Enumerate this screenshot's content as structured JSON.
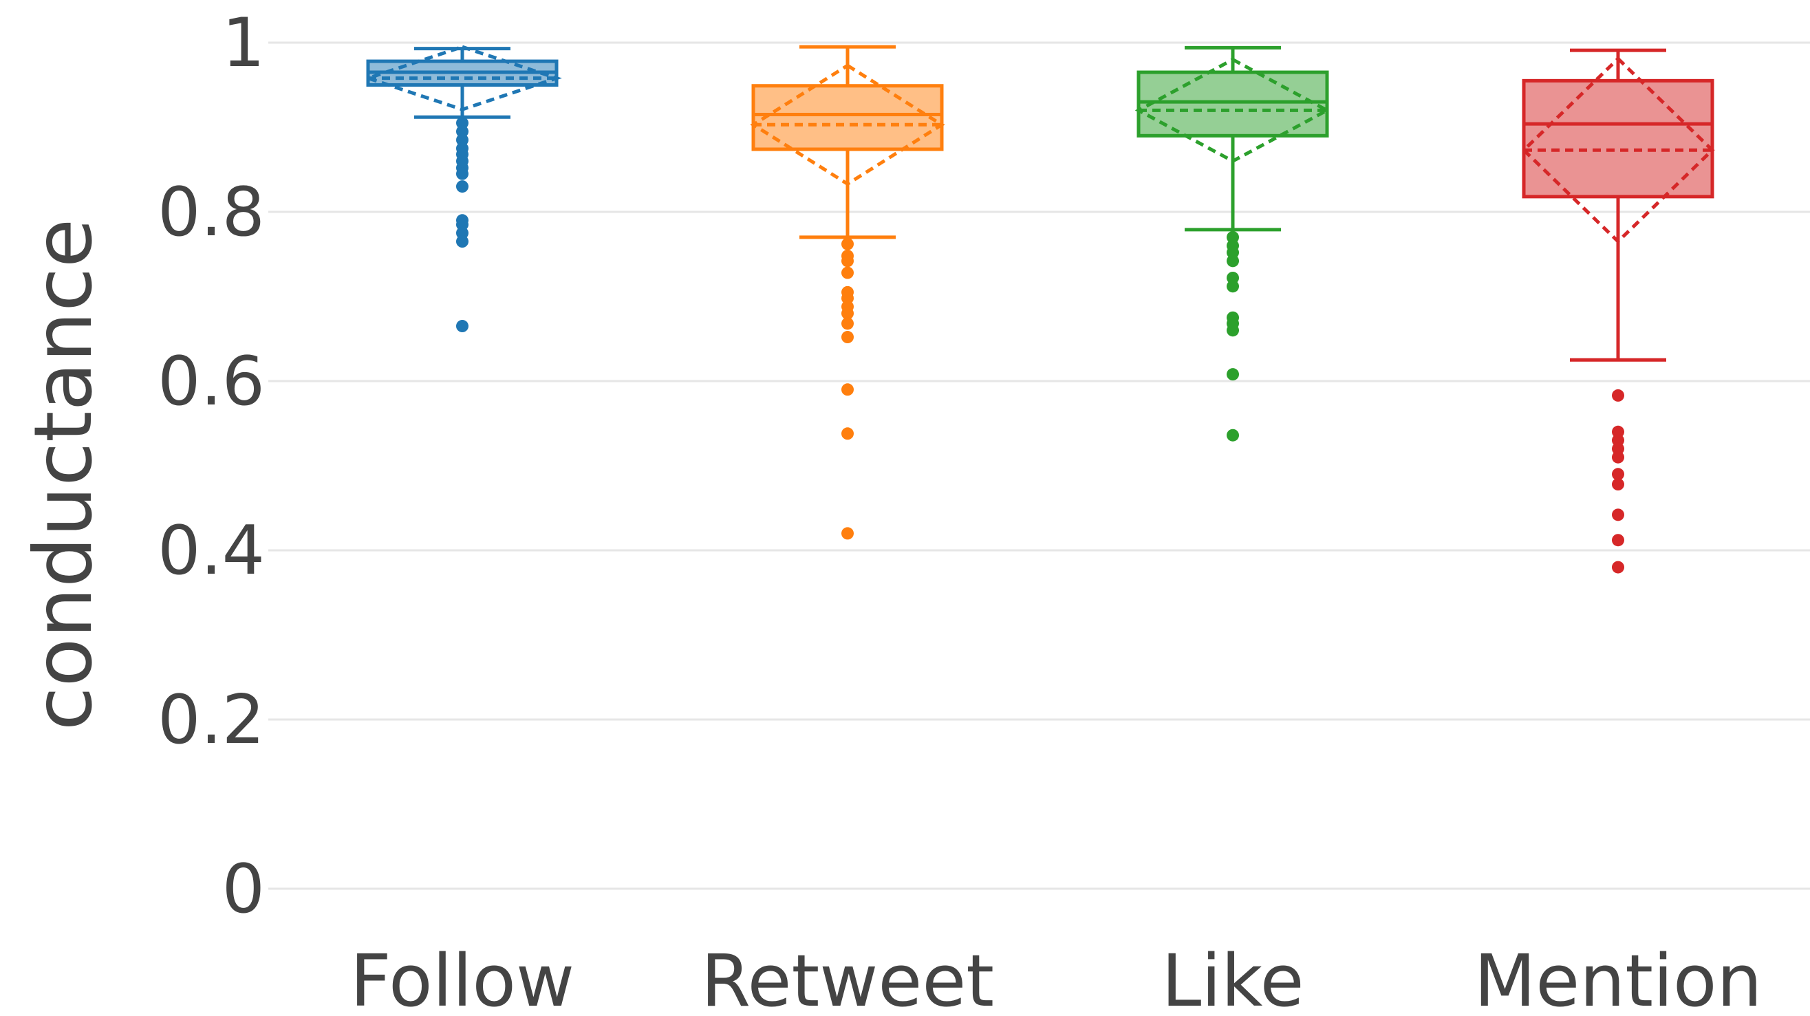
{
  "chart_data": {
    "type": "box",
    "ylabel": "conductance",
    "xlabel": "",
    "ylim": [
      0,
      1
    ],
    "yticks": [
      "0",
      "0.2",
      "0.4",
      "0.6",
      "0.8",
      "1"
    ],
    "grid": true,
    "categories": [
      "Follow",
      "Retweet",
      "Like",
      "Mention"
    ],
    "series": [
      {
        "color": "#1f77b4",
        "q1": 0.95,
        "median": 0.965,
        "q3": 0.978,
        "whisker_low": 0.912,
        "whisker_high": 0.993,
        "mean": 0.958,
        "sd": 0.037,
        "outliers": [
          0.905,
          0.895,
          0.885,
          0.875,
          0.868,
          0.86,
          0.852,
          0.845,
          0.83,
          0.79,
          0.785,
          0.775,
          0.765,
          0.665
        ]
      },
      {
        "color": "#ff7f0e",
        "q1": 0.874,
        "median": 0.915,
        "q3": 0.949,
        "whisker_low": 0.77,
        "whisker_high": 0.995,
        "mean": 0.903,
        "sd": 0.07,
        "outliers": [
          0.762,
          0.748,
          0.742,
          0.728,
          0.705,
          0.698,
          0.688,
          0.68,
          0.668,
          0.652,
          0.59,
          0.538,
          0.42
        ]
      },
      {
        "color": "#2ca02c",
        "q1": 0.89,
        "median": 0.93,
        "q3": 0.965,
        "whisker_low": 0.779,
        "whisker_high": 0.994,
        "mean": 0.92,
        "sd": 0.06,
        "outliers": [
          0.77,
          0.76,
          0.752,
          0.742,
          0.722,
          0.712,
          0.675,
          0.668,
          0.66,
          0.608,
          0.536
        ]
      },
      {
        "color": "#d62728",
        "q1": 0.818,
        "median": 0.904,
        "q3": 0.955,
        "whisker_low": 0.625,
        "whisker_high": 0.991,
        "mean": 0.873,
        "sd": 0.108,
        "outliers": [
          0.583,
          0.54,
          0.53,
          0.52,
          0.51,
          0.49,
          0.478,
          0.442,
          0.412,
          0.38
        ]
      }
    ]
  }
}
